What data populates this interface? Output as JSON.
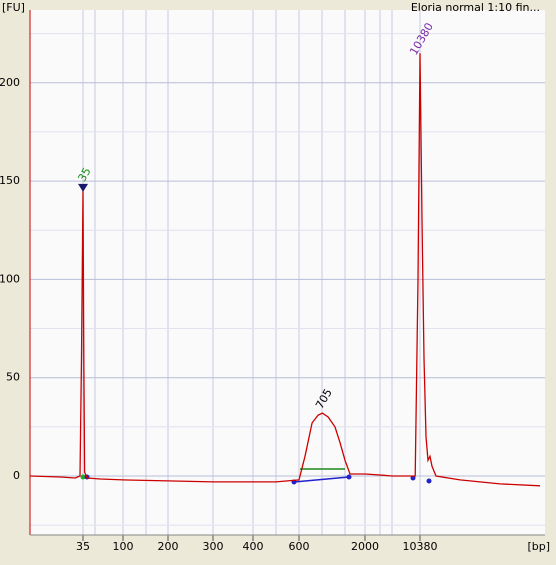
{
  "chart_data": {
    "type": "line",
    "title": "Eloria normal 1:10 fin...",
    "y_label": "[FU]",
    "x_label": "[bp]",
    "ylim": [
      -30,
      237
    ],
    "yticks": [
      0,
      50,
      100,
      150,
      200
    ],
    "xticks": [
      35,
      100,
      200,
      300,
      400,
      600,
      2000,
      10380
    ],
    "peak_labels": [
      {
        "x": 35,
        "label": "35"
      },
      {
        "x": 705,
        "label": "705"
      },
      {
        "x": 10380,
        "label": "10380"
      }
    ],
    "series": [
      {
        "name": "Eloria normal 1:10",
        "color": "#cc0000",
        "x": [
          0,
          20,
          30,
          33,
          34,
          35,
          36,
          37,
          40,
          60,
          100,
          200,
          300,
          400,
          500,
          550,
          600,
          626,
          657,
          683,
          705,
          780,
          870,
          935,
          1000,
          1250,
          2000,
          3000,
          7000,
          9800,
          10140,
          10380,
          10694,
          11008,
          11322,
          11636,
          11950,
          12264,
          12892,
          16660,
          22940,
          29220
        ],
        "values": [
          0,
          -0.5,
          -1,
          0,
          60,
          146,
          60,
          2,
          -1,
          -1.5,
          -2,
          -2.5,
          -3,
          -3,
          -3,
          -2.5,
          -2,
          10,
          27,
          31,
          32,
          30,
          25,
          17,
          8,
          1,
          1,
          0.5,
          0,
          0,
          100,
          215,
          130,
          60,
          20,
          8,
          10,
          5,
          0,
          -2,
          -4,
          -5
        ]
      }
    ]
  }
}
